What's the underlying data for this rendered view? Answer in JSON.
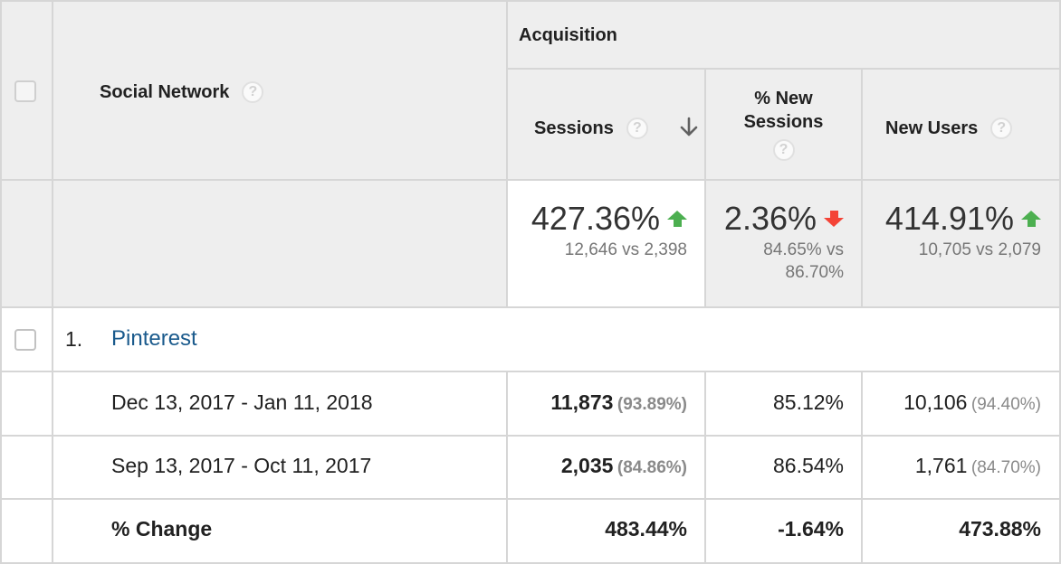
{
  "colors": {
    "header_bg": "#eeeeee",
    "border": "#d6d6d6",
    "link": "#1a5a8c",
    "up": "#4caf50",
    "down": "#f44336"
  },
  "header": {
    "social_network_label": "Social Network",
    "acquisition_label": "Acquisition",
    "sessions_label": "Sessions",
    "new_sessions_label_line1": "% New",
    "new_sessions_label_line2": "Sessions",
    "new_users_label": "New Users",
    "help_glyph": "?",
    "sort_icon": "arrow-down-icon"
  },
  "totals": {
    "sessions": {
      "change": "427.36%",
      "direction": "up",
      "compare": "12,646 vs 2,398"
    },
    "new_sessions": {
      "change": "2.36%",
      "direction": "down",
      "compare_line1": "84.65% vs",
      "compare_line2": "86.70%"
    },
    "new_users": {
      "change": "414.91%",
      "direction": "up",
      "compare": "10,705 vs 2,079"
    }
  },
  "rows": [
    {
      "index": "1.",
      "name": "Pinterest",
      "periods": [
        {
          "label": "Dec 13, 2017 - Jan 11, 2018",
          "sessions": "11,873",
          "sessions_pct": "(93.89%)",
          "new_sessions": "85.12%",
          "new_users": "10,106",
          "new_users_pct": "(94.40%)"
        },
        {
          "label": "Sep 13, 2017 - Oct 11, 2017",
          "sessions": "2,035",
          "sessions_pct": "(84.86%)",
          "new_sessions": "86.54%",
          "new_users": "1,761",
          "new_users_pct": "(84.70%)"
        }
      ],
      "change": {
        "label": "% Change",
        "sessions": "483.44%",
        "new_sessions": "-1.64%",
        "new_users": "473.88%"
      }
    }
  ]
}
